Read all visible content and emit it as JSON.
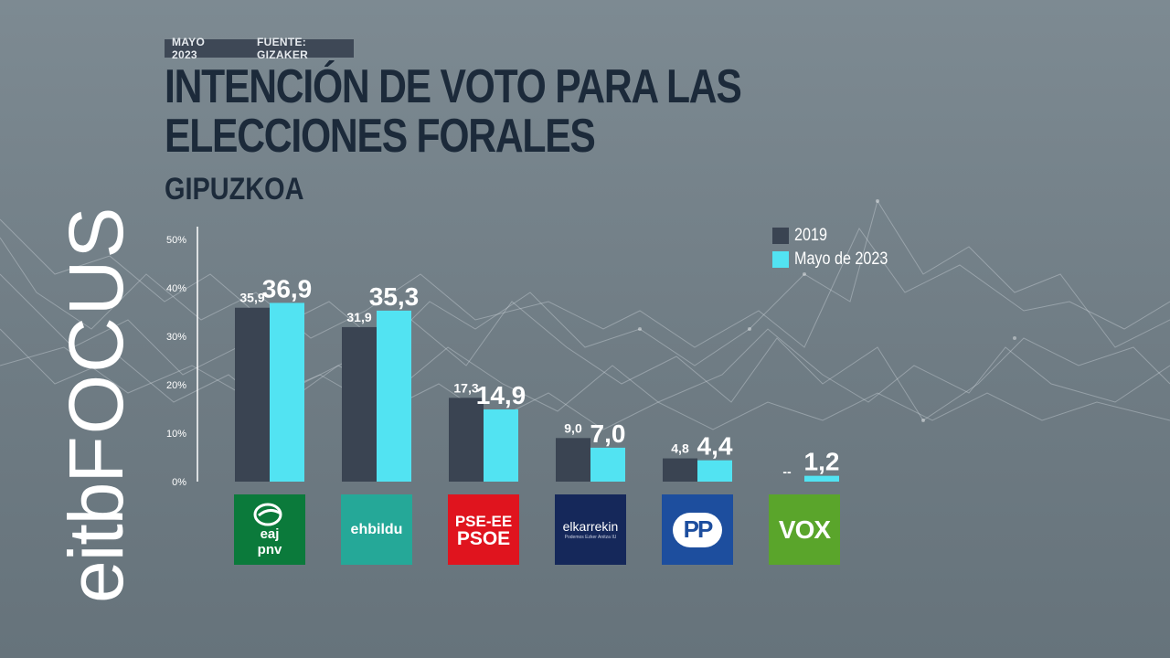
{
  "header": {
    "date": "MAYO 2023",
    "source": "FUENTE: GIZAKER",
    "title": "INTENCIÓN DE VOTO PARA LAS ELECCIONES FORALES",
    "subtitle": "GIPUZKOA"
  },
  "brand": {
    "part1": "eitb",
    "part2": "FOCUS"
  },
  "colors": {
    "series_2019": "#3a4452",
    "series_2023": "#52e3f2",
    "title": "#1c2a3a"
  },
  "logos": [
    {
      "icon": "pnv-logo",
      "line1": "eaj",
      "line2": "pnv"
    },
    {
      "icon": "ehbildu-logo",
      "line1": "ehbildu"
    },
    {
      "icon": "psoe-logo",
      "line1": "PSE-EE",
      "line2": "PSOE"
    },
    {
      "icon": "elkarrekin-logo",
      "line1": "elkarrekin",
      "line2": "Podemos  Ezker Anitza  IU"
    },
    {
      "icon": "pp-logo",
      "line1": "PP"
    },
    {
      "icon": "vox-logo",
      "line1": "VOX"
    }
  ],
  "chart_data": {
    "type": "bar",
    "title": "INTENCIÓN DE VOTO PARA LAS ELECCIONES FORALES",
    "subtitle": "GIPUZKOA",
    "categories": [
      "EAJ-PNV",
      "EH Bildu",
      "PSE-EE PSOE",
      "Elkarrekin Podemos",
      "PP",
      "VOX"
    ],
    "series": [
      {
        "name": "2019",
        "values": [
          35.9,
          31.9,
          17.3,
          9.0,
          4.8,
          null
        ],
        "labels": [
          "35,9",
          "31,9",
          "17,3",
          "9,0",
          "4,8",
          "--"
        ]
      },
      {
        "name": "Mayo de 2023",
        "values": [
          36.9,
          35.3,
          14.9,
          7.0,
          4.4,
          1.2
        ],
        "labels": [
          "36,9",
          "35,3",
          "14,9",
          "7,0",
          "4,4",
          "1,2"
        ]
      }
    ],
    "yticks": [
      "0%",
      "10%",
      "20%",
      "30%",
      "40%",
      "50%"
    ],
    "ylim": [
      0,
      50
    ],
    "legend_position": "top-right",
    "grid": false
  }
}
